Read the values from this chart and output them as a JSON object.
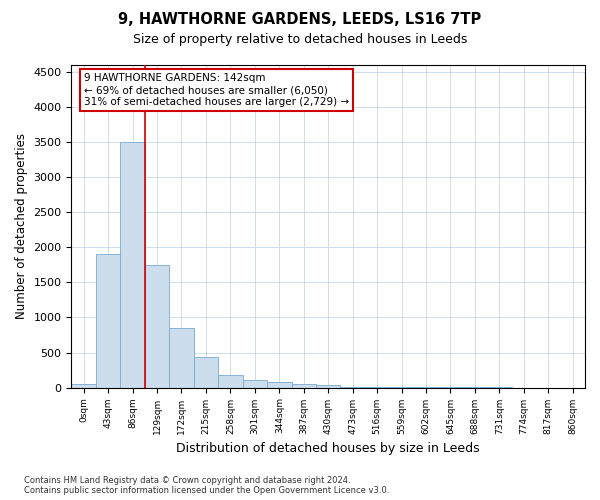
{
  "title1": "9, HAWTHORNE GARDENS, LEEDS, LS16 7TP",
  "title2": "Size of property relative to detached houses in Leeds",
  "xlabel": "Distribution of detached houses by size in Leeds",
  "ylabel": "Number of detached properties",
  "bar_color": "#ccdded",
  "bar_edge_color": "#7aaacc",
  "vline_color": "#cc0000",
  "categories": [
    "0sqm",
    "43sqm",
    "86sqm",
    "129sqm",
    "172sqm",
    "215sqm",
    "258sqm",
    "301sqm",
    "344sqm",
    "387sqm",
    "430sqm",
    "473sqm",
    "516sqm",
    "559sqm",
    "602sqm",
    "645sqm",
    "688sqm",
    "731sqm",
    "774sqm",
    "817sqm",
    "860sqm"
  ],
  "values": [
    50,
    1900,
    3500,
    1750,
    850,
    430,
    175,
    110,
    80,
    55,
    30,
    10,
    5,
    3,
    2,
    2,
    1,
    1,
    0,
    0,
    0
  ],
  "ylim": [
    0,
    4600
  ],
  "yticks": [
    0,
    500,
    1000,
    1500,
    2000,
    2500,
    3000,
    3500,
    4000,
    4500
  ],
  "annotation_line1": "9 HAWTHORNE GARDENS: 142sqm",
  "annotation_line2": "← 69% of detached houses are smaller (6,050)",
  "annotation_line3": "31% of semi-detached houses are larger (2,729) →",
  "annotation_box_color": "#ffffff",
  "annotation_box_edgecolor": "#cc0000",
  "footer_text": "Contains HM Land Registry data © Crown copyright and database right 2024.\nContains public sector information licensed under the Open Government Licence v3.0.",
  "background_color": "#ffffff",
  "grid_color": "#c5d8e8",
  "vline_bar_index": 3
}
